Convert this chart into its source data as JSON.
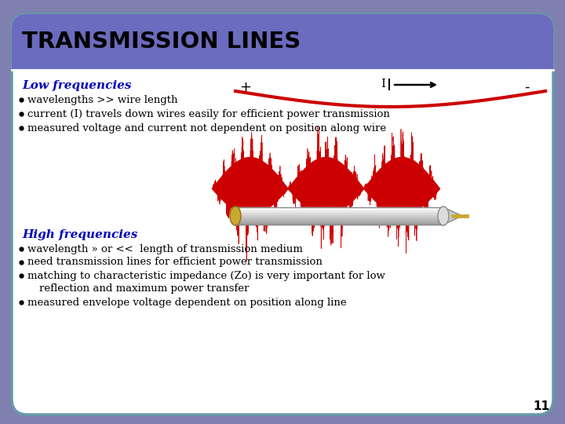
{
  "title": "TRANSMISSION LINES",
  "title_bg_color": "#6B6BBF",
  "title_text_color": "#000000",
  "content_bg_color": "#ffffff",
  "outer_bg_color": "#8080B0",
  "low_freq_label": "Low frequencies",
  "low_freq_bullets": [
    "wavelengths >> wire length",
    "current (I) travels down wires easily for efficient power transmission",
    "measured voltage and current not dependent on position along wire"
  ],
  "high_freq_label": "High frequencies",
  "high_freq_bullets": [
    "wavelength » or <<  length of transmission medium",
    "need transmission lines for efficient power transmission",
    "matching to characteristic impedance (Zo) is very important for low",
    "    reflection and maximum power transfer",
    "measured envelope voltage dependent on position along line"
  ],
  "plus_sign": "+",
  "minus_sign": "-",
  "page_number": "11",
  "low_wave_color": "#cc0000",
  "high_wave_color": "#cc0000",
  "label_color": "#0000bb",
  "bullet_color": "#000000",
  "arrow_color": "#000000",
  "sep_line_color": "#ffffff",
  "border_color": "#6699AA"
}
